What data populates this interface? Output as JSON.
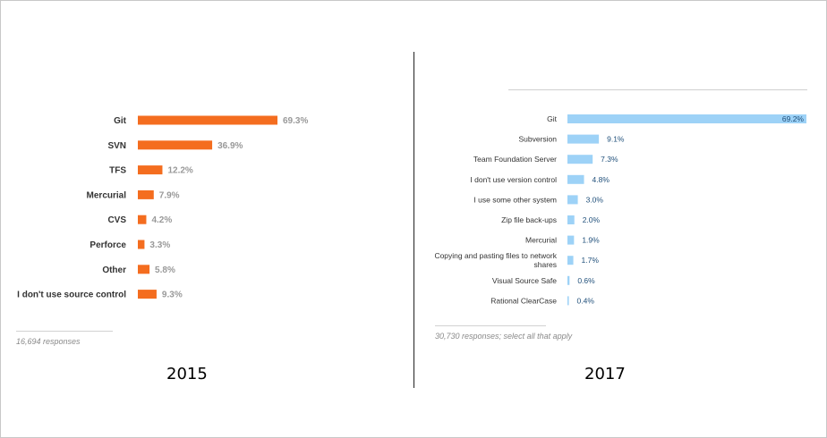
{
  "chart_data": [
    {
      "type": "bar",
      "orientation": "horizontal",
      "year_label": "2015",
      "footnote": "16,694 responses",
      "unit": "%",
      "color": "#f46d1f",
      "categories": [
        "Git",
        "SVN",
        "TFS",
        "Mercurial",
        "CVS",
        "Perforce",
        "Other",
        "I don't use source control"
      ],
      "values": [
        69.3,
        36.9,
        12.2,
        7.9,
        4.2,
        3.3,
        5.8,
        9.3
      ],
      "value_labels": [
        "69.3%",
        "36.9%",
        "12.2%",
        "7.9%",
        "4.2%",
        "3.3%",
        "5.8%",
        "9.3%"
      ],
      "xlim": [
        0,
        69.3
      ],
      "grid": false
    },
    {
      "type": "bar",
      "orientation": "horizontal",
      "year_label": "2017",
      "footnote": "30,730 responses; select all that apply",
      "unit": "%",
      "color": "#9dd2f7",
      "categories": [
        "Git",
        "Subversion",
        "Team Foundation Server",
        "I don't use version control",
        "I use some other system",
        "Zip file back-ups",
        "Mercurial",
        "Copying and pasting files to network shares",
        "Visual Source Safe",
        "Rational ClearCase"
      ],
      "category_lines": [
        [
          "Git"
        ],
        [
          "Subversion"
        ],
        [
          "Team Foundation Server"
        ],
        [
          "I don't use version control"
        ],
        [
          "I use some other system"
        ],
        [
          "Zip file back-ups"
        ],
        [
          "Mercurial"
        ],
        [
          "Copying and pasting files to network",
          "shares"
        ],
        [
          "Visual Source Safe"
        ],
        [
          "Rational ClearCase"
        ]
      ],
      "values": [
        69.2,
        9.1,
        7.3,
        4.8,
        3.0,
        2.0,
        1.9,
        1.7,
        0.6,
        0.4
      ],
      "value_labels": [
        "69.2%",
        "9.1%",
        "7.3%",
        "4.8%",
        "3.0%",
        "2.0%",
        "1.9%",
        "1.7%",
        "0.6%",
        "0.4%"
      ],
      "xlim": [
        0,
        69.2
      ],
      "grid": false
    }
  ]
}
